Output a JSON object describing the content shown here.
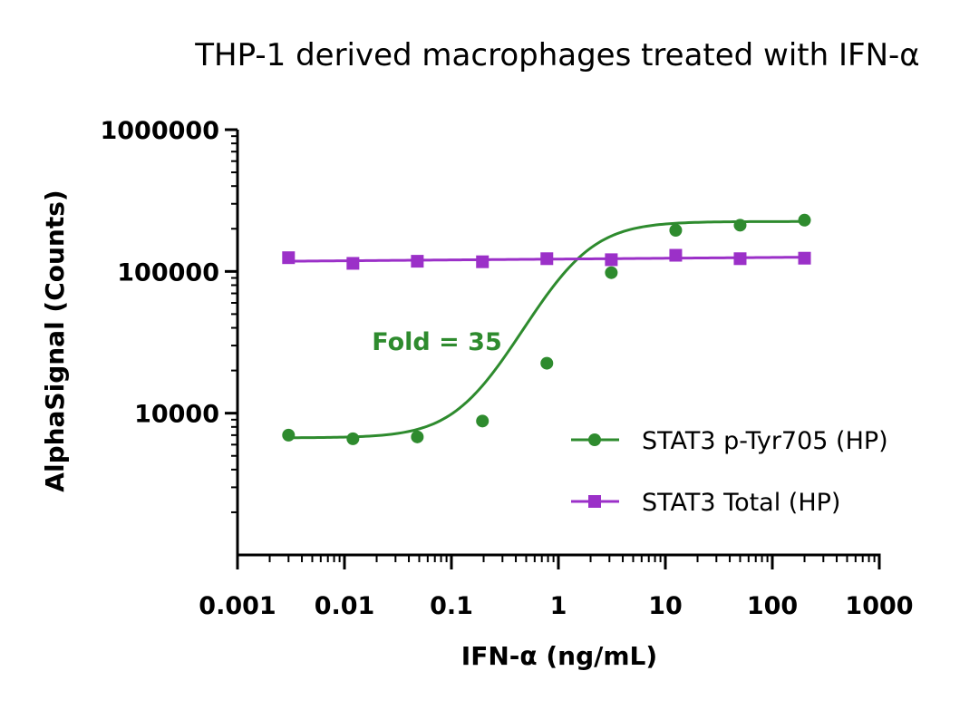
{
  "chart_data": {
    "type": "scatter",
    "title": "THP-1 derived macrophages treated with IFN-α",
    "xlabel": "IFN-α (ng/mL)",
    "ylabel": "AlphaSignal (Counts)",
    "x_scale": "log",
    "y_scale": "log",
    "xlim": [
      0.001,
      1000
    ],
    "ylim": [
      1000,
      1000000
    ],
    "x_ticks": [
      "0.001",
      "0.01",
      "0.1",
      "1",
      "10",
      "100",
      "1000"
    ],
    "y_ticks": [
      "10000",
      "100000",
      "1000000"
    ],
    "grid": false,
    "legend_position": "bottom-right",
    "annotation": {
      "text": "Fold = 35",
      "color": "#2e8b2e"
    },
    "series": [
      {
        "name": "STAT3 p-Tyr705 (HP)",
        "color": "#2e8b2e",
        "marker": "circle",
        "x": [
          0.003,
          0.012,
          0.048,
          0.195,
          0.78,
          3.125,
          12.5,
          50,
          200
        ],
        "y": [
          7000,
          6600,
          6800,
          8800,
          22500,
          98000,
          195000,
          212000,
          230000
        ],
        "fit": {
          "model": "4PL",
          "bottom": 6700,
          "top": 225000,
          "ec50": 1.4,
          "hill": 1.6
        }
      },
      {
        "name": "STAT3 Total (HP)",
        "color": "#9b30c8",
        "marker": "square",
        "x": [
          0.003,
          0.012,
          0.048,
          0.195,
          0.78,
          3.125,
          12.5,
          50,
          200
        ],
        "y": [
          125000,
          114000,
          118000,
          117000,
          123000,
          121000,
          130000,
          123000,
          124000
        ],
        "fit": {
          "model": "linear",
          "start": 118000,
          "end": 126000
        }
      }
    ]
  }
}
